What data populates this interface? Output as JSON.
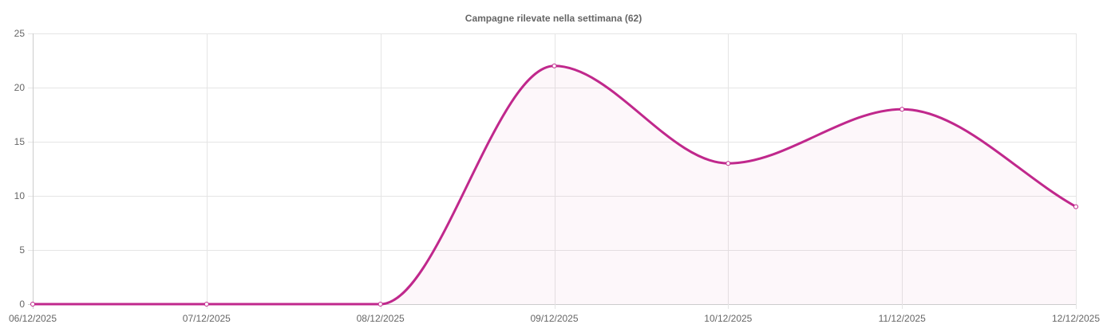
{
  "chart_data": {
    "type": "line",
    "title": "Campagne rilevate nella settimana (62)",
    "xlabel": "",
    "ylabel": "",
    "categories": [
      "06/12/2025",
      "07/12/2025",
      "08/12/2025",
      "09/12/2025",
      "10/12/2025",
      "11/12/2025",
      "12/12/2025"
    ],
    "series": [
      {
        "values": [
          0,
          0,
          0,
          22,
          13,
          18,
          9
        ]
      }
    ],
    "ylim": [
      0,
      25
    ],
    "yticks": [
      0,
      5,
      10,
      15,
      20,
      25
    ],
    "grid": true,
    "smooth": true,
    "filled_area": true,
    "colors": {
      "line": "#c0288c",
      "fill": "rgba(192,40,140,0.04)",
      "grid": "#e5e5e5",
      "text": "#666666"
    }
  }
}
